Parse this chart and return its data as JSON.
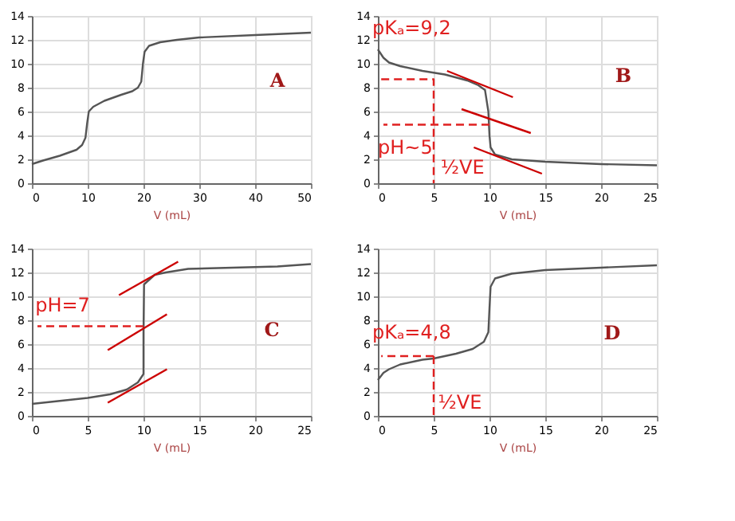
{
  "chart_data": [
    {
      "type": "line",
      "xlabel": "V (mL)",
      "xlim": [
        0,
        50
      ],
      "xticks": [
        0,
        10,
        20,
        30,
        40,
        50
      ],
      "ylim": [
        0,
        14
      ],
      "yticks": [
        0,
        2,
        4,
        6,
        8,
        10,
        12,
        14
      ],
      "grid": true,
      "annotations": [
        "A"
      ],
      "series": [
        {
          "color": "#555555",
          "x": [
            0,
            2,
            5,
            8,
            9,
            9.6,
            9.9,
            10.2,
            11,
            13,
            16,
            18,
            19,
            19.6,
            19.9,
            20.2,
            21,
            23,
            26,
            30,
            40,
            50
          ],
          "values": [
            1.6,
            1.9,
            2.3,
            2.8,
            3.2,
            3.8,
            5,
            6,
            6.4,
            6.9,
            7.4,
            7.7,
            8,
            8.5,
            10,
            11,
            11.5,
            11.8,
            12,
            12.2,
            12.4,
            12.6
          ]
        }
      ]
    },
    {
      "type": "line",
      "xlabel": "V (mL)",
      "xlim": [
        0,
        25
      ],
      "xticks": [
        0,
        5,
        10,
        15,
        20,
        25
      ],
      "ylim": [
        0,
        14
      ],
      "yticks": [
        0,
        2,
        4,
        6,
        8,
        10,
        12,
        14
      ],
      "grid": true,
      "annotations": [
        "B",
        "pKₐ=9,2",
        "pH~5",
        "½VE"
      ],
      "series": [
        {
          "color": "#555555",
          "x": [
            0,
            0.5,
            1,
            2,
            4,
            6,
            8,
            9,
            9.6,
            9.9,
            10,
            10.1,
            10.5,
            12,
            15,
            20,
            25
          ],
          "values": [
            11.2,
            10.5,
            10.1,
            9.8,
            9.4,
            9.1,
            8.6,
            8.2,
            7.8,
            6,
            4,
            3,
            2.4,
            2,
            1.8,
            1.6,
            1.5
          ]
        },
        {
          "color": "#cc0000",
          "x": [
            6.2,
            12.1
          ],
          "values": [
            9.4,
            7.2
          ]
        },
        {
          "color": "#cc0000",
          "x": [
            7.5,
            13.7
          ],
          "values": [
            6.2,
            4.2
          ]
        },
        {
          "color": "#cc0000",
          "x": [
            8.6,
            14.7
          ],
          "values": [
            3,
            0.8
          ]
        },
        {
          "color": "#e02020",
          "line_style": "dashed",
          "x": [
            0.3,
            5,
            5
          ],
          "values": [
            8.7,
            8.7,
            0
          ]
        },
        {
          "color": "#e02020",
          "line_style": "dashed",
          "x": [
            10,
            0.5
          ],
          "values": [
            4.9,
            4.9
          ]
        }
      ]
    },
    {
      "type": "line",
      "xlabel": "V (mL)",
      "xlim": [
        0,
        25
      ],
      "xticks": [
        0,
        5,
        10,
        15,
        20,
        25
      ],
      "ylim": [
        0,
        14
      ],
      "yticks": [
        0,
        2,
        4,
        6,
        8,
        10,
        12,
        14
      ],
      "grid": true,
      "annotations": [
        "C",
        "pH=7"
      ],
      "series": [
        {
          "color": "#555555",
          "x": [
            0,
            3,
            5,
            7,
            8.5,
            9.5,
            10,
            10,
            10.05,
            11,
            12,
            14,
            18,
            22,
            25
          ],
          "values": [
            1,
            1.3,
            1.5,
            1.8,
            2.2,
            2.8,
            3.5,
            7,
            11,
            11.8,
            12,
            12.3,
            12.4,
            12.5,
            12.7
          ]
        },
        {
          "color": "#cc0000",
          "x": [
            6.8,
            12.1
          ],
          "values": [
            1.1,
            3.9
          ]
        },
        {
          "color": "#cc0000",
          "x": [
            6.8,
            12.1
          ],
          "values": [
            5.5,
            8.5
          ]
        },
        {
          "color": "#cc0000",
          "x": [
            7.8,
            13.1
          ],
          "values": [
            10.1,
            12.9
          ]
        },
        {
          "color": "#e02020",
          "line_style": "dashed",
          "x": [
            10,
            0.5
          ],
          "values": [
            7.5,
            7.5
          ]
        }
      ]
    },
    {
      "type": "line",
      "xlabel": "V (mL)",
      "xlim": [
        0,
        25
      ],
      "xticks": [
        0,
        5,
        10,
        15,
        20,
        25
      ],
      "ylim": [
        0,
        14
      ],
      "yticks": [
        0,
        2,
        4,
        6,
        8,
        10,
        12,
        14
      ],
      "grid": true,
      "annotations": [
        "D",
        "pKₐ=4,8",
        "½VE"
      ],
      "series": [
        {
          "color": "#555555",
          "x": [
            0,
            0.5,
            1,
            2,
            4,
            5,
            7,
            8.5,
            9.5,
            9.9,
            10,
            10.1,
            10.5,
            12,
            15,
            20,
            25
          ],
          "values": [
            3,
            3.6,
            3.9,
            4.3,
            4.7,
            4.8,
            5.2,
            5.6,
            6.2,
            7,
            9,
            10.8,
            11.5,
            11.9,
            12.2,
            12.4,
            12.6
          ]
        },
        {
          "color": "#e02020",
          "line_style": "dashed",
          "x": [
            5,
            0.3
          ],
          "values": [
            5,
            5
          ]
        },
        {
          "color": "#e02020",
          "line_style": "dashed",
          "x": [
            5,
            5
          ],
          "values": [
            5,
            0
          ]
        }
      ]
    }
  ]
}
